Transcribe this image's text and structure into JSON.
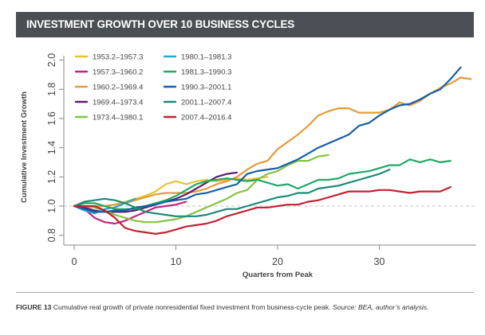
{
  "header": {
    "title": "INVESTMENT GROWTH OVER 10 BUSINESS CYCLES"
  },
  "caption": {
    "figure_label": "FIGURE 13",
    "text": "Cumulative real growth of private nonresidential fixed investment from business-cycle peak.",
    "source": "Source: BEA, author’s analysis."
  },
  "chart_data": {
    "type": "line",
    "title": "INVESTMENT GROWTH OVER 10 BUSINESS CYCLES",
    "xlabel": "Quarters from Peak",
    "ylabel": "Cumulative Investment Growth",
    "xlim": [
      -1,
      39.5
    ],
    "ylim": [
      0.73,
      2.03
    ],
    "xticks": [
      0,
      10,
      20,
      30
    ],
    "xtick_labels": [
      "0",
      "10",
      "20",
      "30"
    ],
    "yticks": [
      0.8,
      1.0,
      1.2,
      1.4,
      1.6,
      1.8,
      2.0
    ],
    "ytick_labels": [
      "0.8",
      "1.0",
      "1.2",
      "1.4",
      "1.6",
      "1.8",
      "2.0"
    ],
    "reference_line": 1.0,
    "grid": false,
    "legend_position": "top-left",
    "series": [
      {
        "name": "1953.2–1957.3",
        "color": "#e8c12f",
        "values": [
          1.0,
          1.0,
          1.0,
          1.0,
          1.01,
          1.03,
          1.05,
          1.07,
          1.1,
          1.15,
          1.17,
          1.15,
          1.17,
          1.18,
          1.17,
          1.18,
          1.19,
          1.18,
          1.19,
          1.2
        ]
      },
      {
        "name": "1957.3–1960.2",
        "color": "#c4237c",
        "values": [
          1.0,
          0.98,
          0.92,
          0.89,
          0.88,
          0.9,
          0.93,
          0.96,
          0.99,
          1.0,
          1.01,
          1.03
        ]
      },
      {
        "name": "1960.2–1969.4",
        "color": "#e59a3a",
        "values": [
          1.0,
          0.99,
          1.0,
          1.0,
          1.01,
          1.02,
          1.04,
          1.06,
          1.08,
          1.09,
          1.09,
          1.09,
          1.1,
          1.12,
          1.15,
          1.17,
          1.2,
          1.25,
          1.29,
          1.31,
          1.39,
          1.44,
          1.49,
          1.55,
          1.62,
          1.65,
          1.67,
          1.67,
          1.64,
          1.64,
          1.64,
          1.66,
          1.71,
          1.69,
          1.72,
          1.77,
          1.81,
          1.84,
          1.88,
          1.87
        ]
      },
      {
        "name": "1969.4–1973.4",
        "color": "#5b1f6e",
        "values": [
          1.0,
          0.99,
          0.97,
          0.96,
          0.96,
          0.96,
          0.97,
          0.99,
          1.01,
          1.03,
          1.05,
          1.08,
          1.12,
          1.16,
          1.2,
          1.22,
          1.23
        ]
      },
      {
        "name": "1973.4–1980.1",
        "color": "#85c344",
        "values": [
          1.0,
          1.0,
          0.99,
          0.97,
          0.94,
          0.92,
          0.9,
          0.89,
          0.89,
          0.9,
          0.91,
          0.93,
          0.96,
          0.99,
          1.02,
          1.05,
          1.09,
          1.11,
          1.18,
          1.22,
          1.24,
          1.28,
          1.31,
          1.31,
          1.34,
          1.35
        ]
      },
      {
        "name": "1980.1–1981.3",
        "color": "#2aa7cf",
        "values": [
          1.0,
          0.97,
          0.95,
          0.98,
          0.99,
          1.02,
          1.05
        ]
      },
      {
        "name": "1981.3–1990.3",
        "color": "#20a865",
        "values": [
          1.0,
          1.02,
          1.02,
          1.0,
          0.98,
          0.98,
          0.98,
          1.0,
          1.02,
          1.04,
          1.07,
          1.11,
          1.15,
          1.17,
          1.18,
          1.19,
          1.18,
          1.17,
          1.18,
          1.16,
          1.14,
          1.15,
          1.12,
          1.15,
          1.18,
          1.18,
          1.19,
          1.22,
          1.23,
          1.24,
          1.26,
          1.28,
          1.28,
          1.32,
          1.3,
          1.32,
          1.3,
          1.31
        ]
      },
      {
        "name": "1990.3–2001.1",
        "color": "#155ea8",
        "values": [
          1.0,
          0.98,
          0.96,
          0.96,
          0.97,
          0.97,
          0.99,
          1.0,
          1.01,
          1.03,
          1.04,
          1.05,
          1.08,
          1.09,
          1.11,
          1.13,
          1.15,
          1.22,
          1.24,
          1.25,
          1.26,
          1.29,
          1.32,
          1.36,
          1.4,
          1.43,
          1.46,
          1.49,
          1.55,
          1.57,
          1.62,
          1.66,
          1.69,
          1.7,
          1.73,
          1.77,
          1.8,
          1.87,
          1.95
        ]
      },
      {
        "name": "2001.1–2007.4",
        "color": "#1b8a77",
        "values": [
          1.0,
          1.03,
          1.04,
          1.05,
          1.04,
          1.02,
          0.99,
          0.96,
          0.95,
          0.94,
          0.93,
          0.93,
          0.93,
          0.94,
          0.96,
          0.98,
          0.98,
          1.0,
          1.02,
          1.04,
          1.06,
          1.07,
          1.09,
          1.09,
          1.12,
          1.13,
          1.14,
          1.16,
          1.18,
          1.2,
          1.22,
          1.25
        ]
      },
      {
        "name": "2007.4–2016.4",
        "color": "#c42030",
        "values": [
          1.0,
          1.0,
          1.0,
          0.97,
          0.92,
          0.85,
          0.83,
          0.82,
          0.81,
          0.82,
          0.84,
          0.86,
          0.87,
          0.88,
          0.9,
          0.93,
          0.95,
          0.97,
          0.99,
          0.99,
          1.0,
          1.01,
          1.01,
          1.03,
          1.04,
          1.06,
          1.08,
          1.1,
          1.1,
          1.1,
          1.11,
          1.11,
          1.1,
          1.09,
          1.1,
          1.1,
          1.1,
          1.13
        ]
      }
    ]
  }
}
